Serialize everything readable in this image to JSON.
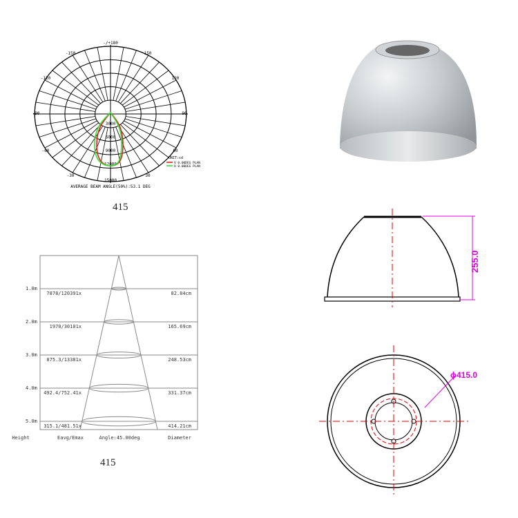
{
  "polar": {
    "angle_labels": {
      "top": "-/+180",
      "m150": "-150",
      "p150": "150",
      "m120": "-120",
      "p120": "120",
      "m90": "-90",
      "p90": "90",
      "m60": "-60",
      "p60": "60",
      "m30": "-30",
      "p30": "30"
    },
    "ring_labels": [
      "3000",
      "6000",
      "9000",
      "12000",
      "15000"
    ],
    "unit": "UNIT:cd",
    "legend": [
      {
        "label": "V 0.00DEG PLAN",
        "color": "#e02020"
      },
      {
        "label": "H 0.00DEG PLAN",
        "color": "#33dd33"
      }
    ],
    "footer": "AVERAGE BEAM ANGLE(50%):53.1 DEG",
    "caption": "415"
  },
  "cone": {
    "rows": [
      {
        "height": "1.0m",
        "eavg_emax": "7878/120391x",
        "diameter": "82.84cm"
      },
      {
        "height": "2.0m",
        "eavg_emax": "1970/30101x",
        "diameter": "165.69cm"
      },
      {
        "height": "3.0m",
        "eavg_emax": "875.3/13381x",
        "diameter": "248.53cm"
      },
      {
        "height": "4.0m",
        "eavg_emax": "492.4/752.41x",
        "diameter": "331.37cm"
      },
      {
        "height": "5.0m",
        "eavg_emax": "315.1/481.51x",
        "diameter": "414.21cm"
      }
    ],
    "headers": {
      "height": "Height",
      "eavg": "Eavg/Emax",
      "angle": "Angle:45.00deg",
      "diameter": "Diameter"
    },
    "caption": "415"
  },
  "drawing": {
    "height_dim": "255.0",
    "diameter_dim": "ϕ415.0",
    "dim_color": "#e000e0",
    "center_color": "#e00000"
  }
}
